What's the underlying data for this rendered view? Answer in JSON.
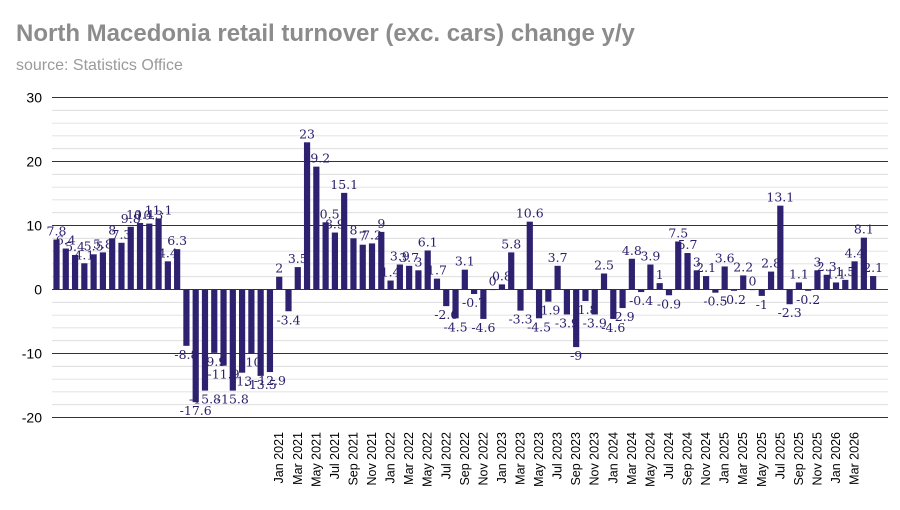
{
  "title": "North Macedonia retail turnover (exc. cars) change y/y",
  "subtitle": "source: Statistics Office",
  "colors": {
    "bar": "#2e2270",
    "title": "#8c8c8c",
    "major_grid": "#333333",
    "minor_grid": "#d9d9d9"
  },
  "chart_data": {
    "type": "bar",
    "title": "North Macedonia retail turnover (exc. cars) change y/y",
    "xlabel": "",
    "ylabel": "",
    "ylim": [
      -20,
      30
    ],
    "yticks": [
      -20,
      -10,
      0,
      10,
      20,
      30
    ],
    "grid": true,
    "start": "2019-01",
    "values": [
      7.8,
      6.4,
      5.4,
      4.1,
      5.5,
      5.8,
      8,
      7.3,
      9.8,
      10.4,
      10.3,
      11.1,
      4.4,
      6.3,
      -8.8,
      -17.6,
      -15.8,
      -9.9,
      -11.9,
      -15.8,
      -13,
      -10,
      -13.5,
      -12.9,
      2,
      -3.4,
      3.5,
      23,
      19.2,
      10.5,
      8.9,
      15.1,
      8,
      7,
      7.2,
      9,
      1.4,
      3.9,
      3.7,
      3,
      6.1,
      1.7,
      -2.6,
      -4.5,
      3.1,
      -0.7,
      -4.6,
      0,
      0.8,
      5.8,
      -3.3,
      10.6,
      -4.5,
      -1.9,
      3.7,
      -3.9,
      -9,
      -1.8,
      -3.9,
      2.5,
      -4.6,
      -2.9,
      4.8,
      -0.4,
      3.9,
      1,
      -0.9,
      7.5,
      5.7,
      3,
      2.1,
      -0.5,
      3.6,
      -0.2,
      2.2,
      0,
      -1,
      2.8,
      13.1,
      -2.3,
      1.1,
      -0.2,
      3,
      2.3,
      1.1,
      1.5,
      4.4,
      8.1,
      2.1
    ],
    "x_tick_labels": [
      "Jan 2021",
      "Mar 2021",
      "May 2021",
      "Jul 2021",
      "Sep 2021",
      "Nov 2021",
      "Jan 2022",
      "Mar 2022",
      "May 2022",
      "Jul 2022",
      "Sep 2022",
      "Nov 2022",
      "Jan 2023",
      "Mar 2023",
      "May 2023",
      "Jul 2023",
      "Sep 2023",
      "Nov 2023",
      "Jan 2024",
      "Mar 2024",
      "May 2024",
      "Jul 2024",
      "Sep 2024",
      "Nov 2024",
      "Jan 2025",
      "Mar 2025",
      "May 2025",
      "Jul 2025",
      "Sep 2025",
      "Nov 2025",
      "Jan 2026",
      "Mar 2026"
    ]
  }
}
